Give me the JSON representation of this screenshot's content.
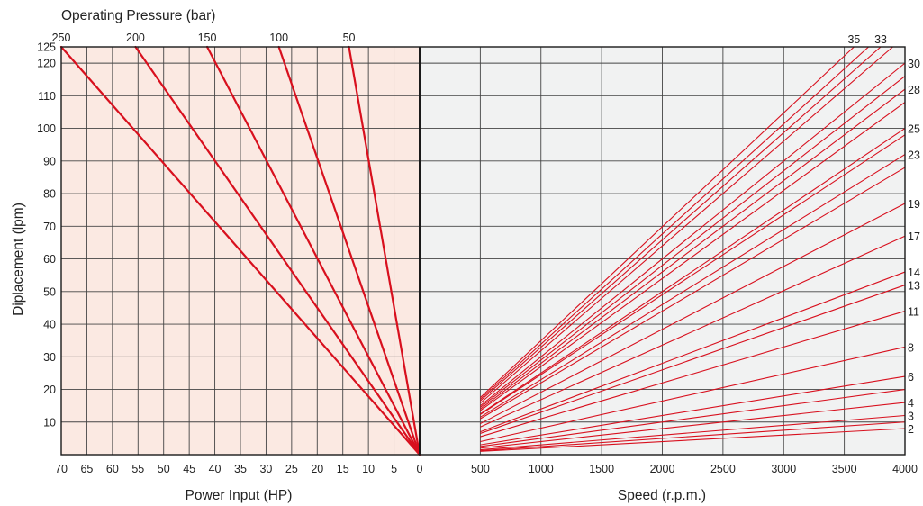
{
  "colors": {
    "left_panel_bg": "#fbe9e2",
    "right_panel_bg": "#f1f2f2",
    "grid": "#444444",
    "frame": "#1a1a1a",
    "series": "#d8101e"
  },
  "chart_data": [
    {
      "type": "line",
      "panel": "left",
      "description_role": "power-input-vs-displacement",
      "xlabel": "Power Input  (HP)",
      "ylabel": "Diplacement  (lpm)",
      "top_label": "Operating Pressure  (bar)",
      "xlim": [
        70,
        0
      ],
      "ylim": [
        0,
        125
      ],
      "x_ticks": [
        70,
        65,
        60,
        55,
        50,
        45,
        40,
        35,
        30,
        25,
        20,
        15,
        10,
        5,
        0
      ],
      "y_ticks": [
        10,
        20,
        30,
        40,
        50,
        60,
        70,
        80,
        90,
        100,
        110,
        120,
        125
      ],
      "grid": true,
      "series": [
        {
          "name": "250",
          "x": [
            0,
            70
          ],
          "y": [
            0,
            125
          ]
        },
        {
          "name": "200",
          "x": [
            0,
            55.5
          ],
          "y": [
            0,
            125
          ]
        },
        {
          "name": "150",
          "x": [
            0,
            41.5
          ],
          "y": [
            0,
            125
          ]
        },
        {
          "name": "100",
          "x": [
            0,
            27.5
          ],
          "y": [
            0,
            125
          ]
        },
        {
          "name": "50",
          "x": [
            0,
            13.8
          ],
          "y": [
            0,
            125
          ]
        }
      ]
    },
    {
      "type": "line",
      "panel": "right",
      "description_role": "speed-vs-displacement",
      "xlabel": "Speed  (r.p.m.)",
      "xlim": [
        0,
        4000
      ],
      "ylim": [
        0,
        125
      ],
      "x_ticks": [
        0,
        500,
        1000,
        1500,
        2000,
        2500,
        3000,
        3500,
        4000
      ],
      "grid": true,
      "series": [
        {
          "name": "2",
          "x": [
            500,
            4000
          ],
          "y": [
            1,
            8
          ]
        },
        {
          "name": "3",
          "x": [
            500,
            4000
          ],
          "y": [
            1.5,
            12
          ]
        },
        {
          "name": "4",
          "x": [
            500,
            4000
          ],
          "y": [
            2,
            16
          ]
        },
        {
          "name": "6",
          "x": [
            500,
            4000
          ],
          "y": [
            3,
            24
          ]
        },
        {
          "name": "8",
          "x": [
            500,
            4000
          ],
          "y": [
            4,
            33
          ]
        },
        {
          "name": "11",
          "x": [
            500,
            4000
          ],
          "y": [
            5.5,
            44
          ]
        },
        {
          "name": "13",
          "x": [
            500,
            4000
          ],
          "y": [
            6.5,
            52
          ]
        },
        {
          "name": "14",
          "x": [
            500,
            4000
          ],
          "y": [
            7,
            56
          ]
        },
        {
          "name": "17",
          "x": [
            500,
            4000
          ],
          "y": [
            8.5,
            67
          ]
        },
        {
          "name": "19",
          "x": [
            500,
            4000
          ],
          "y": [
            9.5,
            77
          ]
        },
        {
          "name": "23",
          "x": [
            500,
            4000
          ],
          "y": [
            11.5,
            92
          ]
        },
        {
          "name": "25",
          "x": [
            500,
            4000
          ],
          "y": [
            12.5,
            100
          ]
        },
        {
          "name": "28",
          "x": [
            500,
            4000
          ],
          "y": [
            14,
            112
          ]
        },
        {
          "name": "30",
          "x": [
            500,
            4000
          ],
          "y": [
            15,
            120
          ]
        },
        {
          "name": "33",
          "x": [
            500,
            3800
          ],
          "y": [
            16.5,
            125
          ]
        },
        {
          "name": "35",
          "x": [
            500,
            3580
          ],
          "y": [
            17.5,
            125
          ]
        }
      ],
      "extra_unlabeled_series": [
        {
          "x": [
            500,
            4000
          ],
          "y": [
            1.2,
            10
          ]
        },
        {
          "x": [
            500,
            4000
          ],
          "y": [
            2.5,
            20
          ]
        },
        {
          "x": [
            500,
            4000
          ],
          "y": [
            11,
            88
          ]
        },
        {
          "x": [
            500,
            4000
          ],
          "y": [
            12.3,
            98
          ]
        },
        {
          "x": [
            500,
            4000
          ],
          "y": [
            13.5,
            108
          ]
        },
        {
          "x": [
            500,
            4000
          ],
          "y": [
            14.5,
            116
          ]
        },
        {
          "x": [
            500,
            3900
          ],
          "y": [
            15.8,
            125
          ]
        },
        {
          "x": [
            500,
            3700
          ],
          "y": [
            17,
            125
          ]
        }
      ]
    }
  ]
}
